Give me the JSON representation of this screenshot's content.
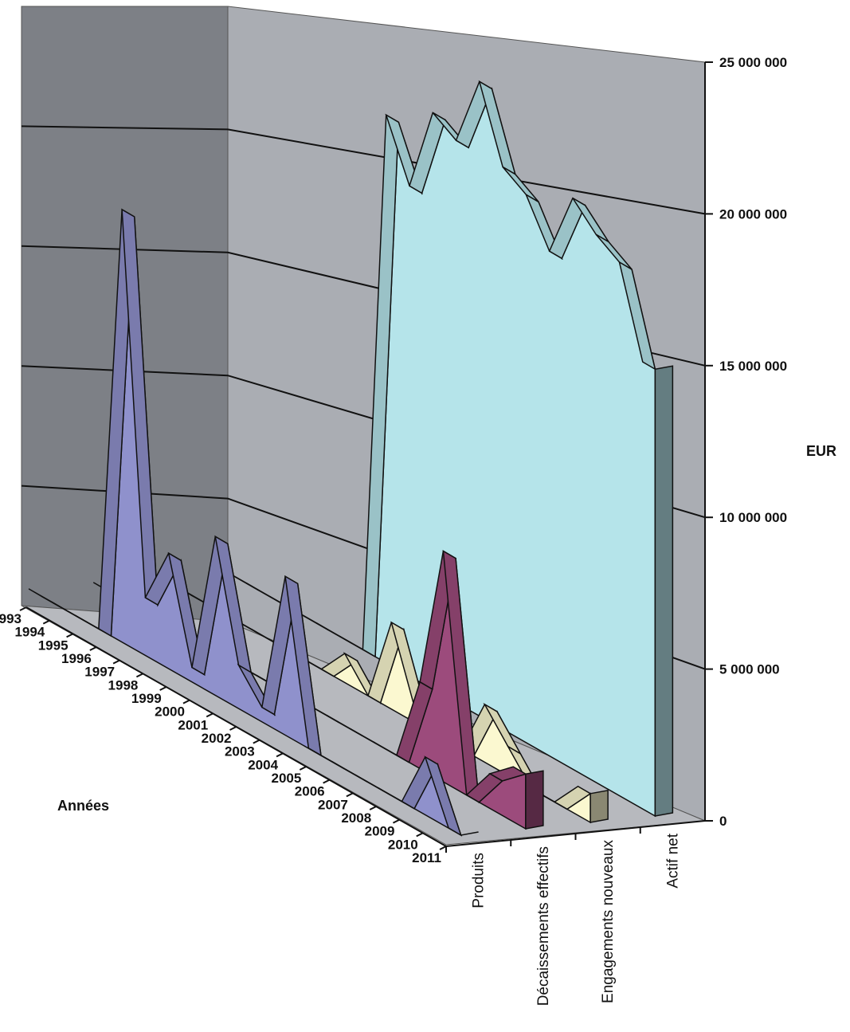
{
  "chart_data": {
    "type": "area",
    "style": "3d-ribbon",
    "title": "",
    "ylabel": "EUR",
    "xlabel": "Années",
    "ylim": [
      0,
      25000000
    ],
    "yticks": [
      0,
      5000000,
      10000000,
      15000000,
      20000000,
      25000000
    ],
    "ytick_labels": [
      "0",
      "5 000 000",
      "10 000 000",
      "15 000 000",
      "20 000 000",
      "25 000 000"
    ],
    "categories": [
      "1993",
      "1994",
      "1995",
      "1996",
      "1997",
      "1998",
      "1999",
      "2000",
      "2001",
      "2002",
      "2003",
      "2004",
      "2005",
      "2006",
      "2007",
      "2008",
      "2009",
      "2010",
      "2011"
    ],
    "series": [
      {
        "name": "Produits",
        "color": "#8f91cc",
        "values": [
          0,
          0,
          0,
          0,
          15000000,
          2000000,
          4000000,
          500000,
          5500000,
          1500000,
          500000,
          5500000,
          0,
          0,
          0,
          0,
          0,
          2000000,
          0
        ]
      },
      {
        "name": "Décaissements effectifs",
        "color": "#9c4b7c",
        "values": [
          0,
          0,
          0,
          0,
          0,
          0,
          0,
          0,
          0,
          0,
          0,
          0,
          0,
          0,
          3000000,
          8000000,
          0,
          1200000,
          1900000
        ]
      },
      {
        "name": "Engagements nouveaux",
        "color": "#fbf8d0",
        "values": [
          0,
          0,
          0,
          0,
          0,
          0,
          0,
          0,
          1000000,
          0,
          3000000,
          500000,
          0,
          0,
          2000000,
          1000000,
          0,
          0,
          1000000
        ]
      },
      {
        "name": "Actif net",
        "color": "#b5e4ea",
        "values": [
          0,
          0,
          0,
          0,
          0,
          0,
          0,
          19000000,
          17000000,
          20000000,
          19500000,
          22000000,
          19500000,
          19000000,
          17500000,
          19800000,
          19000000,
          18500000,
          15500000
        ]
      }
    ]
  }
}
